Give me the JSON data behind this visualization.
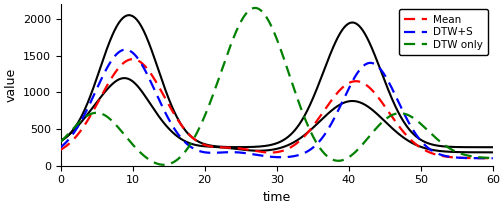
{
  "title": "",
  "xlabel": "time",
  "ylabel": "value",
  "xlim": [
    0,
    60
  ],
  "ylim": [
    0,
    2200
  ],
  "yticks": [
    0,
    500,
    1000,
    1500,
    2000
  ],
  "xticks": [
    0,
    10,
    20,
    30,
    40,
    50,
    60
  ],
  "legend_labels": [
    "Mean",
    "DTW+S",
    "DTW only"
  ],
  "figsize": [
    5.04,
    2.08
  ],
  "dpi": 100,
  "black_lw": 1.5,
  "dash_lw": 1.6,
  "black1": {
    "base": 250,
    "peaks": [
      {
        "mu": 9.5,
        "sigma": 3.8,
        "amp": 1900
      },
      {
        "mu": 40.5,
        "sigma": 4.0,
        "amp": 1700
      },
      {
        "mu": 9.5,
        "sigma": 2.0,
        "amp": -100
      }
    ]
  },
  "black2": {
    "base": 180,
    "peaks": [
      {
        "mu": 8.5,
        "sigma": 4.5,
        "amp": 900
      },
      {
        "mu": 9.5,
        "sigma": 2.2,
        "amp": 120
      },
      {
        "mu": 40.5,
        "sigma": 4.5,
        "amp": 700
      },
      {
        "mu": 22,
        "sigma": 3.0,
        "amp": 60
      }
    ]
  },
  "red": {
    "base": 100,
    "peaks": [
      {
        "mu": 10,
        "sigma": 4.5,
        "amp": 1350
      },
      {
        "mu": 41,
        "sigma": 4.5,
        "amp": 1050
      },
      {
        "mu": 24,
        "sigma": 3.5,
        "amp": 130
      }
    ]
  },
  "blue": {
    "base": 100,
    "peaks": [
      {
        "mu": 9,
        "sigma": 4.2,
        "amp": 1480
      },
      {
        "mu": 43,
        "sigma": 3.8,
        "amp": 1300
      },
      {
        "mu": 24,
        "sigma": 3.0,
        "amp": 80
      }
    ]
  },
  "green": {
    "base": 100,
    "peaks": [
      {
        "mu": 5,
        "sigma": 3.5,
        "amp": 620
      },
      {
        "mu": 27,
        "sigma": 4.5,
        "amp": 2050
      },
      {
        "mu": 47,
        "sigma": 4.0,
        "amp": 620
      },
      {
        "mu": 15,
        "sigma": 3.0,
        "amp": -150
      },
      {
        "mu": 38,
        "sigma": 3.5,
        "amp": -180
      }
    ]
  }
}
